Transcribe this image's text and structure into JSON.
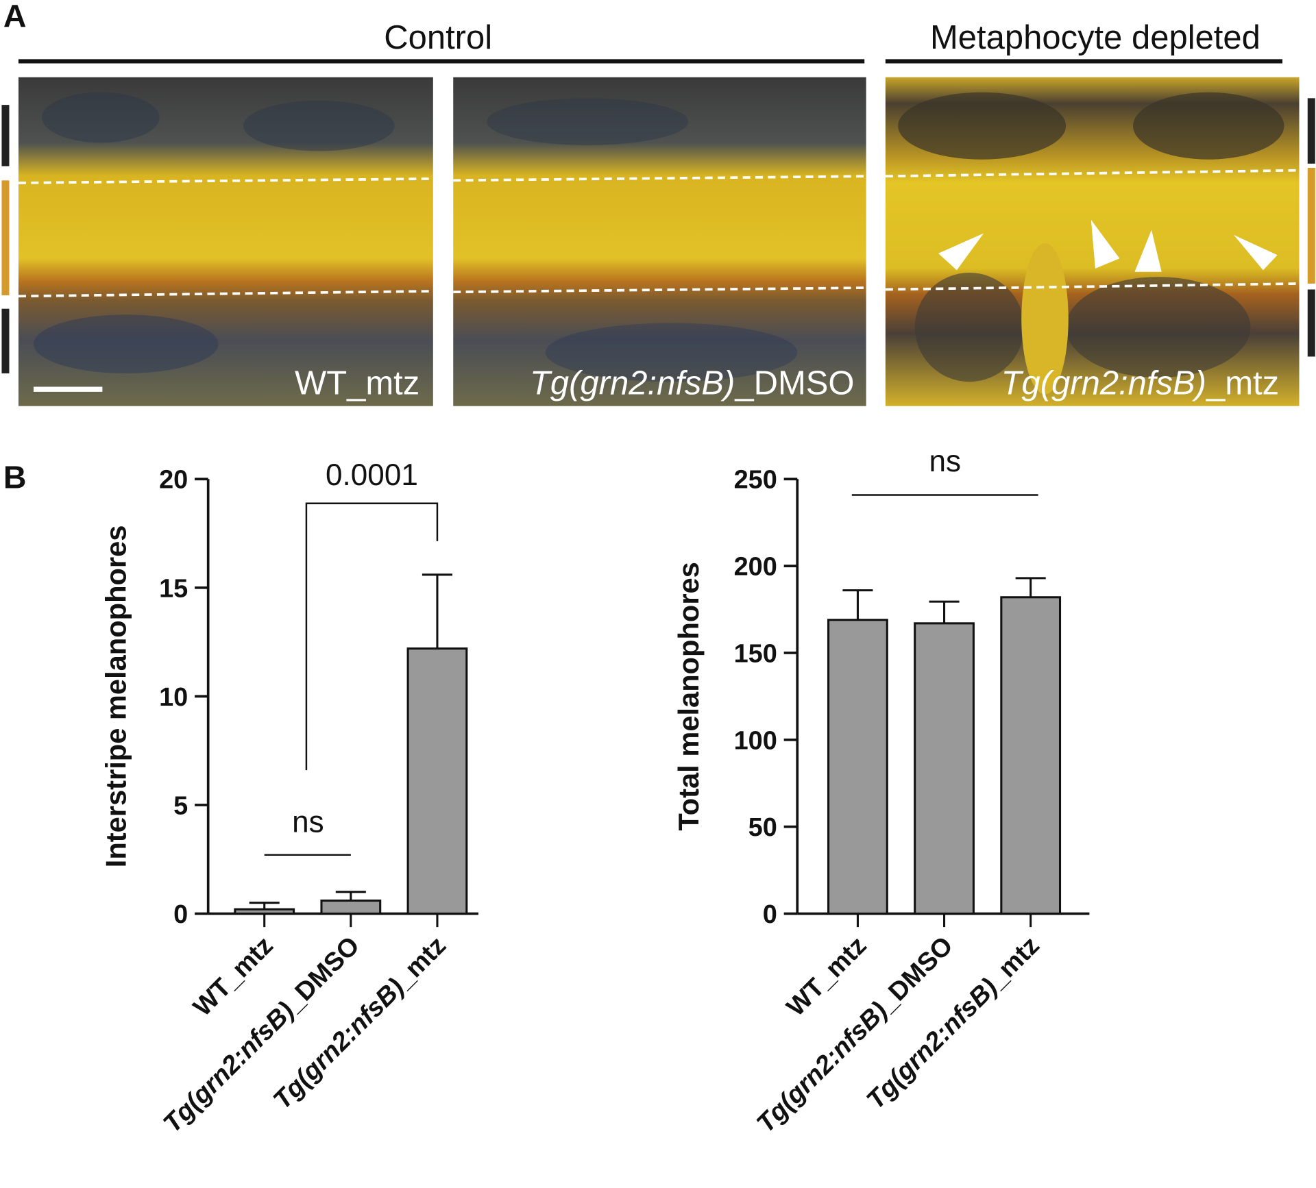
{
  "panel_a": {
    "label": "A",
    "groups": [
      "Control",
      "Metaphocyte depleted"
    ],
    "images": [
      "WT_mtz",
      "Tg(grn2:nfsB)_DMSO",
      "Tg(grn2:nfsB)_mtz"
    ]
  },
  "panel_b": {
    "label": "B"
  },
  "chart_data": [
    {
      "type": "bar",
      "y_label": "Interstripe melanophores",
      "categories": [
        "WT_mtz",
        "Tg(grn2:nfsB)_DMSO",
        "Tg(grn2:nfsB)_mtz"
      ],
      "values": [
        0.2,
        0.6,
        12.2
      ],
      "errors": [
        0.3,
        0.4,
        3.4
      ],
      "color": "#999999",
      "ylim": [
        0,
        20
      ],
      "yticks": [
        0,
        5,
        10,
        15,
        20
      ],
      "annotations": [
        "0.0001",
        "ns"
      ]
    },
    {
      "type": "bar",
      "y_label": "Total melanophores",
      "categories": [
        "WT_mtz",
        "Tg(grn2:nfsB)_DMSO",
        "Tg(grn2:nfsB)_mtz"
      ],
      "values": [
        169,
        167,
        182
      ],
      "errors": [
        17,
        12.5,
        11
      ],
      "color": "#999999",
      "ylim": [
        0,
        250
      ],
      "yticks": [
        0,
        50,
        100,
        150,
        200,
        250
      ],
      "annotations": [
        "ns"
      ]
    }
  ]
}
